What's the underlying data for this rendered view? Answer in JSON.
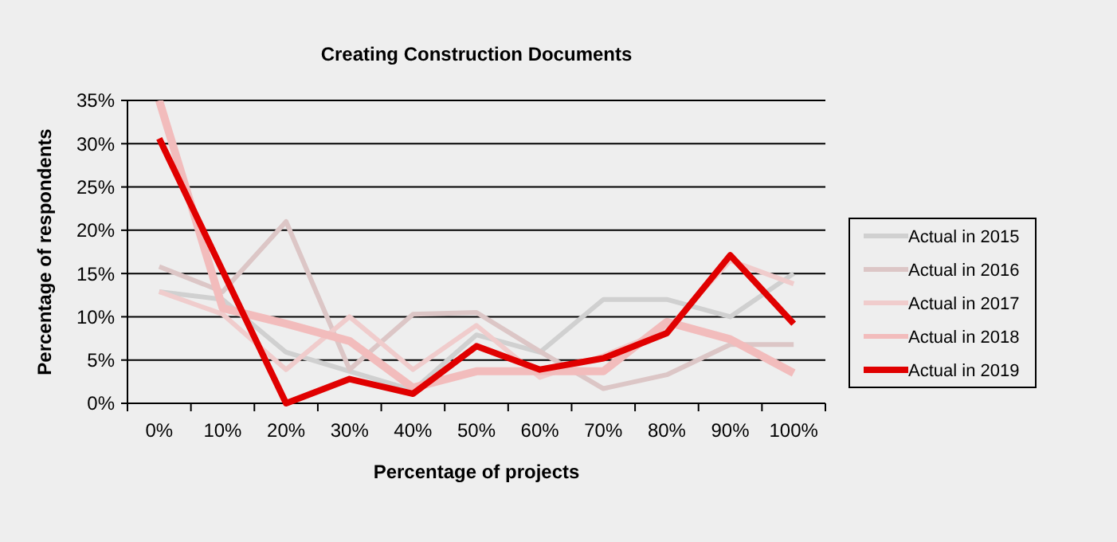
{
  "chart_data": {
    "type": "line",
    "title": "Creating Construction  Documents",
    "xlabel": "Percentage of projects",
    "ylabel": "Percentage of respondents",
    "categories": [
      "0%",
      "10%",
      "20%",
      "30%",
      "40%",
      "50%",
      "60%",
      "70%",
      "80%",
      "90%",
      "100%"
    ],
    "series": [
      {
        "name": "Actual in 2015",
        "color": "#d0d0d0",
        "values": [
          12.9,
          12,
          5.9,
          3.7,
          1.5,
          7.9,
          5.9,
          12,
          12,
          10,
          15
        ]
      },
      {
        "name": "Actual in 2016",
        "color": "#dcc6c6",
        "values": [
          15.8,
          12.9,
          21,
          3.9,
          10.3,
          10.5,
          6,
          1.7,
          3.3,
          6.8,
          6.8
        ]
      },
      {
        "name": "Actual in 2017",
        "color": "#f0cccc",
        "values": [
          12.9,
          10.3,
          3.9,
          10,
          3.9,
          9,
          3,
          5.5,
          8.5,
          16.5,
          13.8
        ]
      },
      {
        "name": "Actual in 2018",
        "color": "#f2bcbc",
        "values": [
          35,
          11,
          9.2,
          7.2,
          1.8,
          3.7,
          3.7,
          3.7,
          9.4,
          7.4,
          3.5
        ]
      },
      {
        "name": "Actual in 2019",
        "color": "#e00000",
        "values": [
          30.6,
          15.3,
          0,
          2.8,
          1.1,
          6.6,
          3.9,
          5.2,
          8.1,
          17.1,
          9.2
        ]
      }
    ],
    "ylim": [
      0,
      35
    ],
    "yticks": [
      {
        "value": 0,
        "label": "0%"
      },
      {
        "value": 5,
        "label": "5%"
      },
      {
        "value": 10,
        "label": "10%"
      },
      {
        "value": 15,
        "label": "15%"
      },
      {
        "value": 20,
        "label": "20%"
      },
      {
        "value": 25,
        "label": "25%"
      },
      {
        "value": 30,
        "label": "30%"
      },
      {
        "value": 35,
        "label": "35%"
      }
    ],
    "grid": "y",
    "legend": "right",
    "marker": "none",
    "line_style": "solid"
  }
}
